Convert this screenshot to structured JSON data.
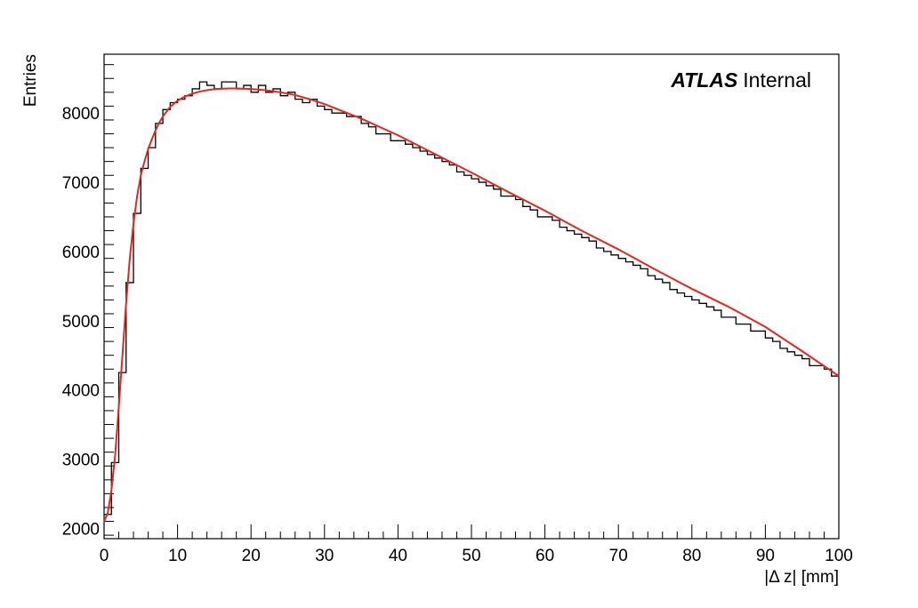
{
  "chart_data": {
    "type": "line",
    "title": "",
    "xlabel": "|Δ z| [mm]",
    "ylabel": "Entries",
    "xlim": [
      0,
      100
    ],
    "ylim": [
      1850,
      8850
    ],
    "x_ticks": [
      0,
      10,
      20,
      30,
      40,
      50,
      60,
      70,
      80,
      90,
      100
    ],
    "x_tick_labels": [
      "0",
      "10",
      "20",
      "30",
      "40",
      "50",
      "60",
      "70",
      "80",
      "90",
      "100"
    ],
    "y_ticks": [
      2000,
      3000,
      4000,
      5000,
      6000,
      7000,
      8000
    ],
    "y_tick_labels": [
      "2000",
      "3000",
      "4000",
      "5000",
      "6000",
      "7000",
      "8000"
    ],
    "grid": false,
    "annotation": {
      "bold": "ATLAS",
      "plain": "Internal"
    },
    "colors": {
      "histogram": "#000000",
      "fit": "#e8251f"
    },
    "series": [
      {
        "type": "histogram-step",
        "x": [
          0.5,
          1.5,
          2.5,
          3.5,
          4.5,
          5.5,
          6.5,
          7.5,
          8.5,
          9.5,
          10.5,
          11.5,
          12.5,
          13.5,
          14.5,
          15.5,
          16.5,
          17.5,
          18.5,
          19.5,
          20.5,
          21.5,
          22.5,
          23.5,
          24.5,
          25.5,
          26.5,
          27.5,
          28.5,
          29.5,
          30.5,
          31.5,
          32.5,
          33.5,
          34.5,
          35.5,
          36.5,
          37.5,
          38.5,
          39.5,
          40.5,
          41.5,
          42.5,
          43.5,
          44.5,
          45.5,
          46.5,
          47.5,
          48.5,
          49.5,
          50.5,
          51.5,
          52.5,
          53.5,
          54.5,
          55.5,
          56.5,
          57.5,
          58.5,
          59.5,
          60.5,
          61.5,
          62.5,
          63.5,
          64.5,
          65.5,
          66.5,
          67.5,
          68.5,
          69.5,
          70.5,
          71.5,
          72.5,
          73.5,
          74.5,
          75.5,
          76.5,
          77.5,
          78.5,
          79.5,
          80.5,
          81.5,
          82.5,
          83.5,
          84.5,
          85.5,
          86.5,
          87.5,
          88.5,
          89.5,
          90.5,
          91.5,
          92.5,
          93.5,
          94.5,
          95.5,
          96.5,
          97.5,
          98.5,
          99.5
        ],
        "values": [
          2200,
          2950,
          4250,
          5550,
          6550,
          7200,
          7500,
          7850,
          8050,
          8150,
          8200,
          8250,
          8350,
          8450,
          8400,
          8350,
          8450,
          8450,
          8350,
          8400,
          8300,
          8400,
          8300,
          8350,
          8250,
          8300,
          8200,
          8150,
          8200,
          8100,
          8050,
          8000,
          8000,
          7950,
          7950,
          7850,
          7800,
          7700,
          7700,
          7600,
          7600,
          7550,
          7500,
          7450,
          7400,
          7350,
          7300,
          7250,
          7150,
          7100,
          7050,
          7000,
          6950,
          6900,
          6800,
          6800,
          6750,
          6650,
          6600,
          6500,
          6500,
          6450,
          6350,
          6300,
          6250,
          6200,
          6150,
          6050,
          6000,
          5950,
          5900,
          5850,
          5800,
          5750,
          5650,
          5600,
          5550,
          5450,
          5400,
          5350,
          5300,
          5250,
          5200,
          5150,
          5050,
          5050,
          4950,
          4950,
          4850,
          4850,
          4750,
          4700,
          4600,
          4550,
          4500,
          4450,
          4350,
          4350,
          4300,
          4200
        ]
      },
      {
        "type": "fit-curve",
        "x": [
          0,
          0.5,
          1,
          1.5,
          2,
          2.5,
          3,
          3.5,
          4,
          4.5,
          5,
          5.5,
          6,
          6.5,
          7,
          7.5,
          8,
          9,
          10,
          11,
          12,
          13,
          14,
          15,
          16,
          17,
          18,
          19,
          20,
          22,
          24,
          26,
          28,
          30,
          35,
          40,
          45,
          50,
          55,
          60,
          65,
          70,
          75,
          80,
          85,
          90,
          95,
          100
        ],
        "values": [
          2100,
          2220,
          2550,
          3050,
          3750,
          4500,
          5250,
          5900,
          6400,
          6800,
          7100,
          7300,
          7480,
          7620,
          7750,
          7860,
          7950,
          8090,
          8180,
          8240,
          8280,
          8310,
          8330,
          8345,
          8352,
          8355,
          8355,
          8352,
          8348,
          8330,
          8300,
          8260,
          8200,
          8130,
          7920,
          7680,
          7410,
          7140,
          6860,
          6590,
          6300,
          6030,
          5740,
          5460,
          5200,
          4910,
          4560,
          4200
        ]
      }
    ]
  }
}
